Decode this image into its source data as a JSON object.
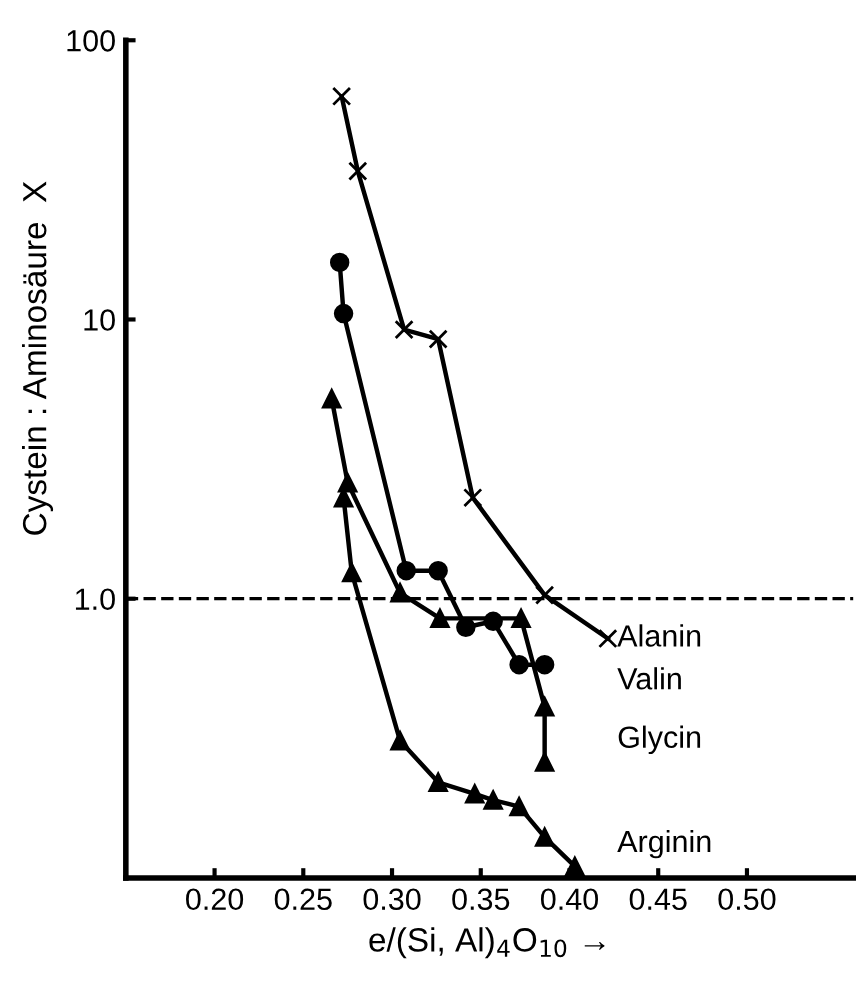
{
  "chart_data": {
    "type": "line",
    "xlabel": "e/(Si, Al)$_{4}$O$_{10}$ →",
    "ylabel": "Cystein : Aminosäure  X",
    "log": "y",
    "xlim": [
      0.15,
      0.56
    ],
    "ylim": [
      0.1,
      100
    ],
    "xticks": [
      {
        "value": 0.2,
        "label": "0.20"
      },
      {
        "value": 0.25,
        "label": "0.25"
      },
      {
        "value": 0.3,
        "label": "0.30"
      },
      {
        "value": 0.35,
        "label": "0.35"
      },
      {
        "value": 0.4,
        "label": "0.40"
      },
      {
        "value": 0.45,
        "label": "0.45"
      },
      {
        "value": 0.5,
        "label": "0.50"
      }
    ],
    "yticks": [
      {
        "value": 1,
        "label": "1.0"
      },
      10,
      100
    ],
    "grid": false,
    "legend": false,
    "ref_lines": [
      {
        "axis": "y",
        "value": 1,
        "color": "#000000",
        "line_style": "dashed"
      }
    ],
    "series": [
      {
        "name": "Alanin",
        "color": "#000000",
        "marker": "cross",
        "x": [
          0.2716,
          0.2807,
          0.3068,
          0.326,
          0.3455,
          0.386,
          0.4216
        ],
        "values": [
          63,
          34,
          9.2,
          8.5,
          2.3,
          1.03,
          0.72
        ]
      },
      {
        "name": "Valin",
        "color": "#000000",
        "marker": "circle",
        "x": [
          0.2705,
          0.2727,
          0.308,
          0.326,
          0.3416,
          0.357,
          0.3716,
          0.386
        ],
        "values": [
          16,
          10.5,
          1.26,
          1.26,
          0.79,
          0.83,
          0.58,
          0.58
        ]
      },
      {
        "name": "Glycin",
        "color": "#000000",
        "marker": "triangle",
        "x": [
          0.266,
          0.275,
          0.3045,
          0.327,
          0.3727,
          0.386,
          0.386
        ],
        "values": [
          5.2,
          2.6,
          1.05,
          0.85,
          0.85,
          0.41,
          0.26
        ]
      },
      {
        "name": "Arginin",
        "color": "#000000",
        "marker": "triangle",
        "x": [
          0.2727,
          0.2773,
          0.3045,
          0.326,
          0.3466,
          0.357,
          0.3716,
          0.386,
          0.403
        ],
        "values": [
          2.3,
          1.24,
          0.31,
          0.22,
          0.2,
          0.19,
          0.18,
          0.14,
          0.11
        ]
      }
    ]
  }
}
